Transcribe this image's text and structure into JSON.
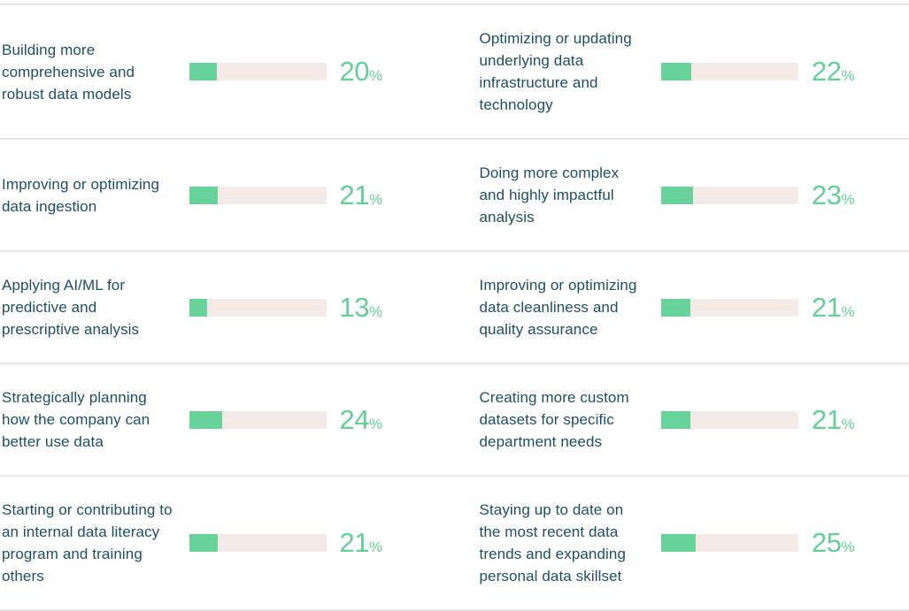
{
  "chart_data": {
    "type": "bar",
    "orientation": "horizontal",
    "unit": "%",
    "value_axis_max": 100,
    "grid": false,
    "legend": false,
    "colors": {
      "bar_fill": "#68d29b",
      "bar_track": "#f3eae7",
      "label_text": "#1d4f63",
      "value_text": "#62cf96",
      "divider": "#e7e6e5"
    },
    "rows": [
      {
        "left": {
          "label": "Building more comprehensive and robust data models",
          "value": 20
        },
        "right": {
          "label": "Optimizing or updating underlying data infrastructure and technology",
          "value": 22
        }
      },
      {
        "left": {
          "label": "Improving or optimizing data ingestion",
          "value": 21
        },
        "right": {
          "label": "Doing more complex and highly impactful analysis",
          "value": 23
        }
      },
      {
        "left": {
          "label": "Applying AI/ML for predictive and prescriptive analysis",
          "value": 13
        },
        "right": {
          "label": "Improving or optimizing data cleanliness and quality assurance",
          "value": 21
        }
      },
      {
        "left": {
          "label": "Strategically planning how the company can better use data",
          "value": 24
        },
        "right": {
          "label": "Creating more custom datasets for specific department needs",
          "value": 21
        }
      },
      {
        "left": {
          "label": "Starting or contributing to an internal data literacy program and training others",
          "value": 21
        },
        "right": {
          "label": "Staying up to date on the most recent data trends and expanding personal data skillset",
          "value": 25
        }
      }
    ]
  }
}
